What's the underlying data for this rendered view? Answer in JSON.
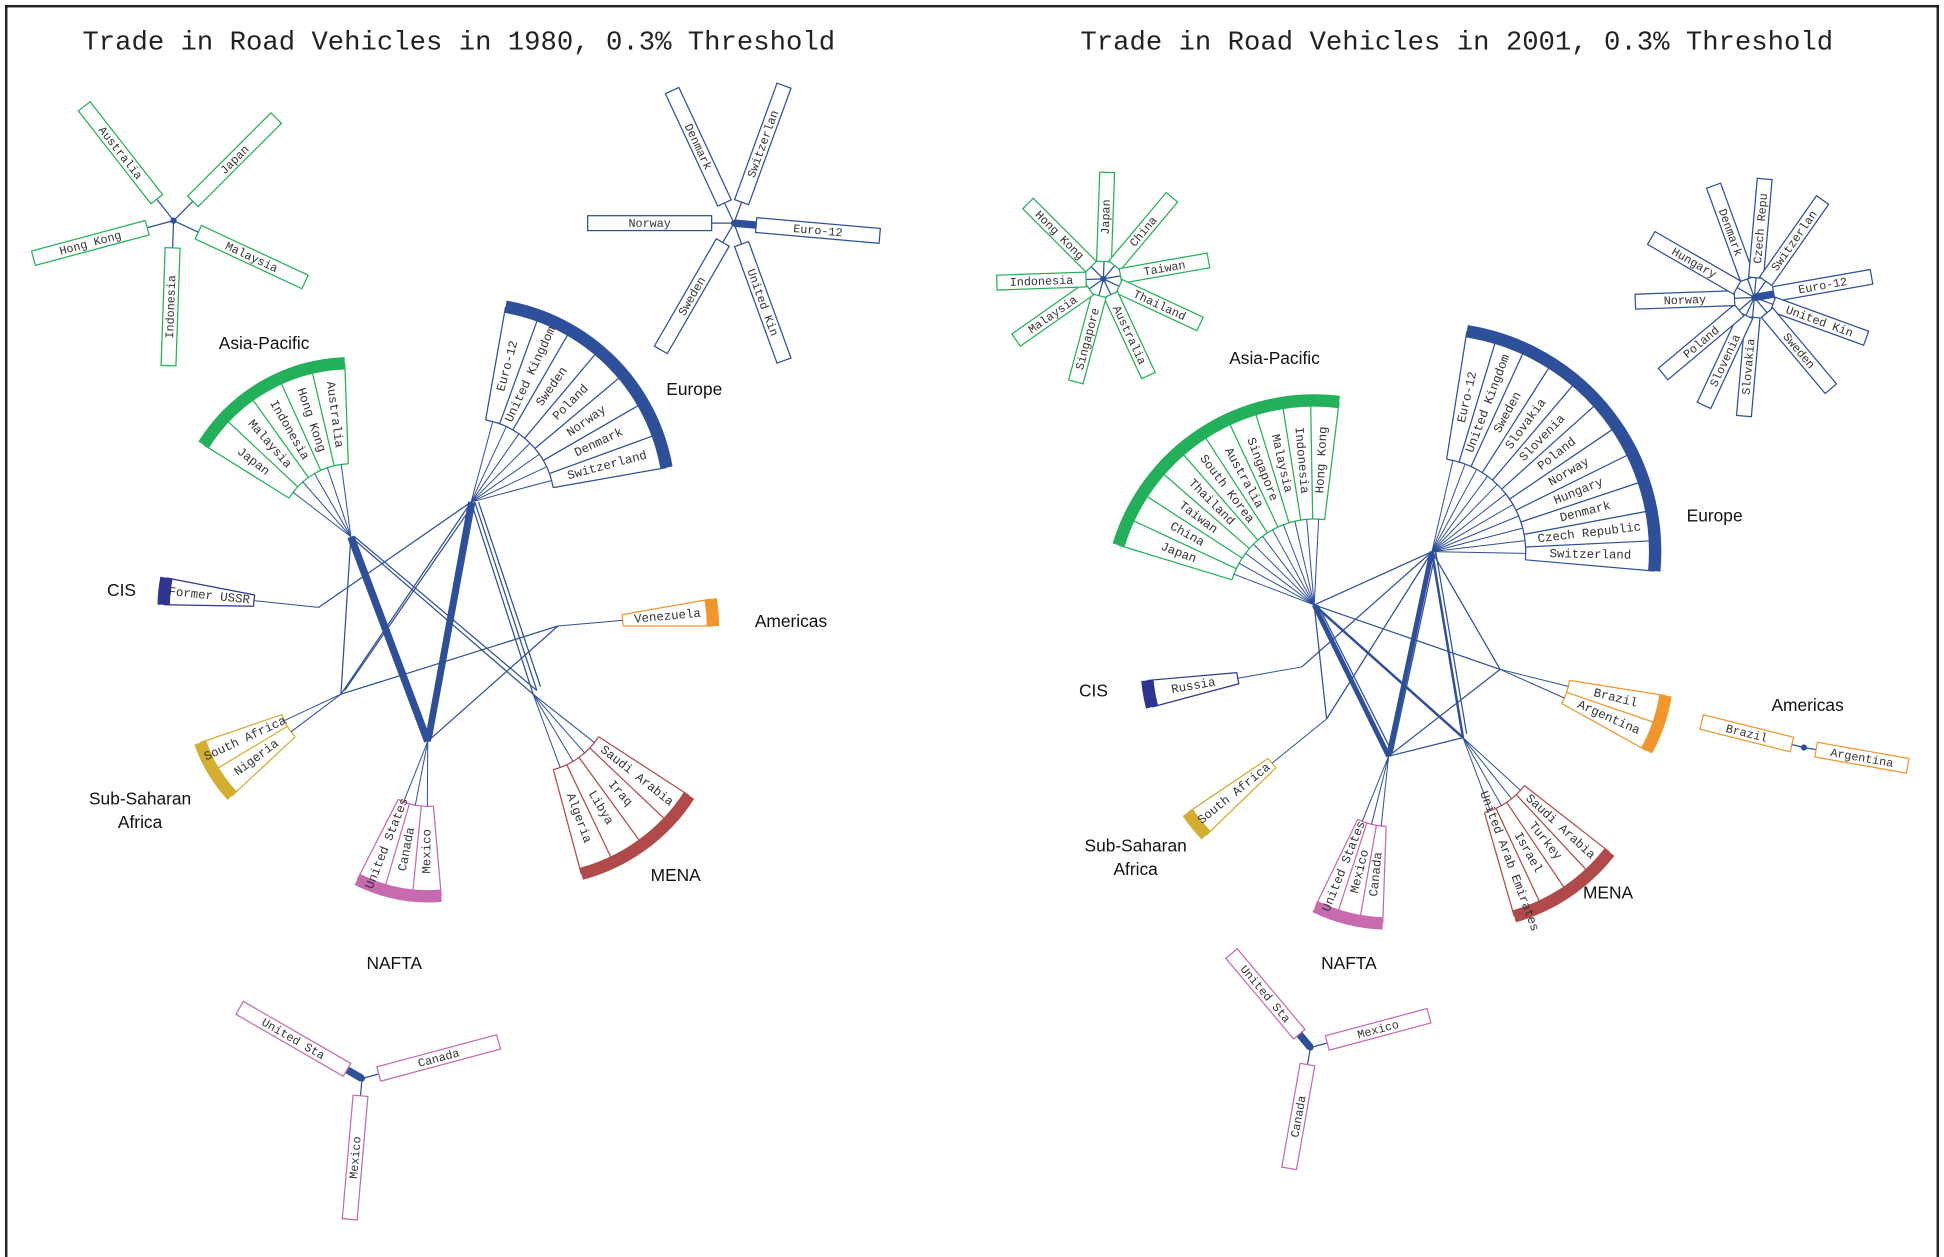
{
  "panels": [
    {
      "title": "Trade in Road Vehicles in 1980, 0.3% Threshold",
      "regions": [
        {
          "name": "Asia-Pacific",
          "countries": [
            "Japan",
            "Malaysia",
            "Indonesia",
            "Hong Kong",
            "Australia"
          ]
        },
        {
          "name": "Europe",
          "countries": [
            "Euro-12",
            "United Kingdom",
            "Sweden",
            "Poland",
            "Norway",
            "Denmark",
            "Switzerland"
          ]
        },
        {
          "name": "CIS",
          "countries": [
            "Former USSR"
          ]
        },
        {
          "name": "Americas",
          "countries": [
            "Venezuela"
          ]
        },
        {
          "name": "Sub-Saharan Africa",
          "countries": [
            "Nigeria",
            "South Africa"
          ]
        },
        {
          "name": "MENA",
          "countries": [
            "Saudi Arabia",
            "Iraq",
            "Libya",
            "Algeria"
          ]
        },
        {
          "name": "NAFTA",
          "countries": [
            "Mexico",
            "Canada",
            "United States"
          ]
        }
      ],
      "stars": [
        {
          "leaves": [
            "Australia",
            "Japan",
            "Malaysia",
            "Indonesia",
            "Hong Kong"
          ]
        },
        {
          "leaves": [
            "Denmark",
            "Switzerlan",
            "Euro-12",
            "United Kin",
            "Sweden",
            "Norway"
          ]
        },
        {
          "leaves": [
            "United Sta",
            "Canada",
            "Mexico"
          ]
        }
      ]
    },
    {
      "title": "Trade in Road Vehicles in 2001, 0.3% Threshold",
      "regions": [
        {
          "name": "Asia-Pacific",
          "countries": [
            "Japan",
            "China",
            "Taiwan",
            "Thailand",
            "South Korea",
            "Australia",
            "Singapore",
            "Malaysia",
            "Indonesia",
            "Hong Kong"
          ]
        },
        {
          "name": "Europe",
          "countries": [
            "Euro-12",
            "United Kingdom",
            "Sweden",
            "Slovakia",
            "Slovenia",
            "Poland",
            "Norway",
            "Hungary",
            "Denmark",
            "Czech Republic",
            "Switzerland"
          ]
        },
        {
          "name": "CIS",
          "countries": [
            "Russia"
          ]
        },
        {
          "name": "Americas",
          "countries": [
            "Brazil",
            "Argentina"
          ]
        },
        {
          "name": "Sub-Saharan Africa",
          "countries": [
            "South Africa"
          ]
        },
        {
          "name": "MENA",
          "countries": [
            "Saudi Arabia",
            "Turkey",
            "Israel",
            "United Arab Emirates"
          ]
        },
        {
          "name": "NAFTA",
          "countries": [
            "Canada",
            "Mexico",
            "United States"
          ]
        }
      ],
      "stars": [
        {
          "leaves": [
            "Japan",
            "China",
            "Taiwan",
            "Thailand",
            "Australia",
            "Singapore",
            "Malaysia",
            "Indonesia",
            "Hong Kong"
          ]
        },
        {
          "leaves": [
            "Denmark",
            "Czech Repu",
            "Switzerlan",
            "Euro-12",
            "United Kin",
            "Sweden",
            "Slovakia",
            "Slovenia",
            "Poland",
            "Norway",
            "Hungary"
          ]
        },
        {
          "leaves": [
            "Brazil",
            "Argentina"
          ]
        },
        {
          "leaves": [
            "United Sta",
            "Mexico",
            "Canada"
          ]
        }
      ]
    }
  ]
}
